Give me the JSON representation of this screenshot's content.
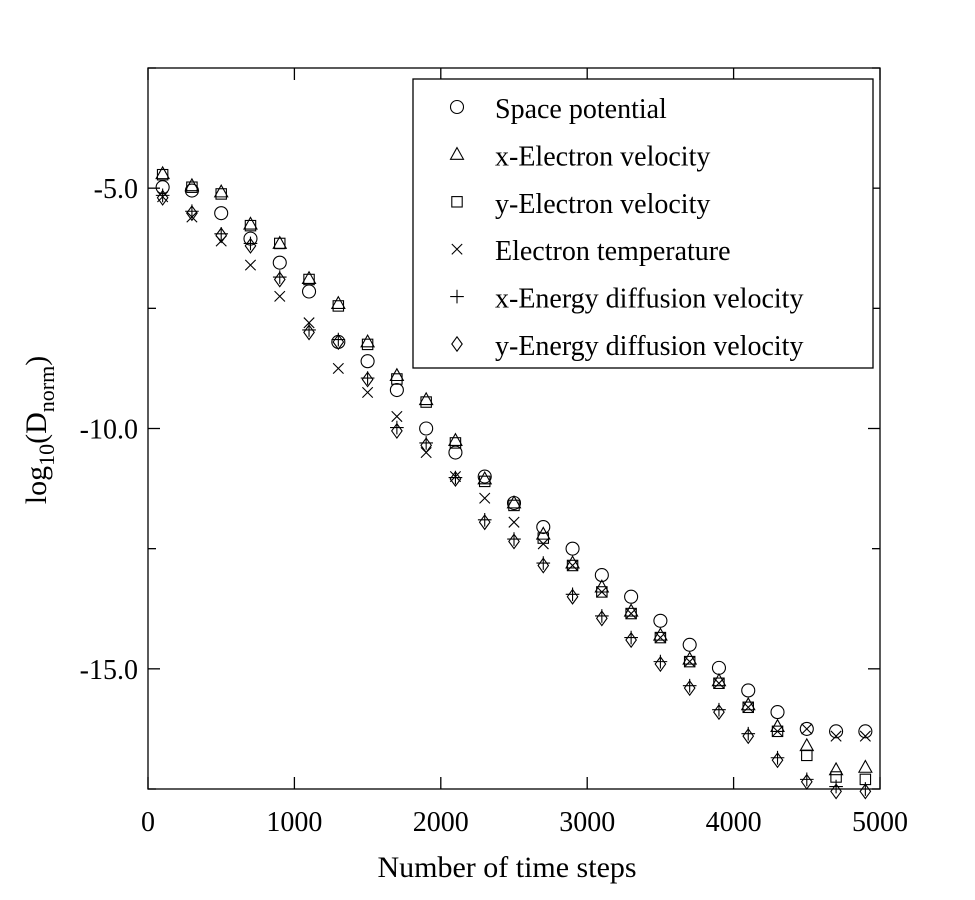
{
  "chart_data": {
    "type": "scatter",
    "title": "",
    "xlabel": "Number of time steps",
    "ylabel": {
      "prefix": "log",
      "sub": "10",
      "open": "(D",
      "sub2": "norm",
      "close": ")"
    },
    "xlim": [
      0,
      5000
    ],
    "ylim": [
      -17.5,
      -2.5
    ],
    "xticks": [
      0,
      1000,
      2000,
      3000,
      4000,
      5000
    ],
    "xtick_labels": [
      "0",
      "1000",
      "2000",
      "3000",
      "4000",
      "5000"
    ],
    "yticks": [
      -5.0,
      -10.0,
      -15.0
    ],
    "ytick_labels": [
      "-5.0",
      "-10.0",
      "-15.0"
    ],
    "minor_yticks": [
      -2.5,
      -7.5,
      -12.5,
      -17.5
    ],
    "grid": false,
    "legend_position": "top-right",
    "x": [
      100,
      300,
      500,
      700,
      900,
      1100,
      1300,
      1500,
      1700,
      1900,
      2100,
      2300,
      2500,
      2700,
      2900,
      3100,
      3300,
      3500,
      3700,
      3900,
      4100,
      4300,
      4500,
      4700,
      4900
    ],
    "series": [
      {
        "name": "Space potential",
        "marker": "circle",
        "values": [
          -4.98,
          -5.05,
          -5.52,
          -6.05,
          -6.55,
          -7.15,
          -8.2,
          -8.6,
          -9.2,
          -10.0,
          -10.5,
          -11.0,
          -11.55,
          -12.05,
          -12.5,
          -13.05,
          -13.5,
          -14.0,
          -14.5,
          -14.98,
          -15.45,
          -15.9,
          -16.25,
          -16.3,
          -16.3
        ]
      },
      {
        "name": "x-Electron velocity",
        "marker": "triangle",
        "values": [
          -4.7,
          -4.95,
          -5.08,
          -5.75,
          -6.15,
          -6.88,
          -7.4,
          -8.2,
          -8.9,
          -9.4,
          -10.25,
          -11.05,
          -11.55,
          -12.2,
          -12.8,
          -13.3,
          -13.8,
          -14.3,
          -14.8,
          -15.25,
          -15.75,
          -16.2,
          -16.6,
          -17.1,
          -17.05
        ]
      },
      {
        "name": "y-Electron velocity",
        "marker": "square",
        "values": [
          -4.72,
          -4.98,
          -5.12,
          -5.78,
          -6.15,
          -6.9,
          -7.45,
          -8.25,
          -8.97,
          -9.45,
          -10.3,
          -11.1,
          -11.6,
          -12.28,
          -12.85,
          -13.4,
          -13.85,
          -14.35,
          -14.85,
          -15.3,
          -15.8,
          -16.3,
          -16.8,
          -17.25,
          -17.3
        ]
      },
      {
        "name": "Electron temperature",
        "marker": "x",
        "values": [
          -5.18,
          -5.6,
          -6.1,
          -6.6,
          -7.25,
          -7.8,
          -8.75,
          -9.25,
          -9.75,
          -10.5,
          -11.0,
          -11.45,
          -11.95,
          -12.4,
          -12.85,
          -13.4,
          -13.85,
          -14.35,
          -14.85,
          -15.3,
          -15.8,
          -16.3,
          -16.25,
          -16.4,
          -16.4
        ]
      },
      {
        "name": "x-Energy diffusion velocity",
        "marker": "plus",
        "values": [
          -5.15,
          -5.48,
          -5.95,
          -6.15,
          -6.85,
          -7.95,
          -8.15,
          -8.95,
          -9.98,
          -10.3,
          -11.02,
          -11.9,
          -12.3,
          -12.8,
          -13.45,
          -13.9,
          -14.35,
          -14.85,
          -15.35,
          -15.85,
          -16.35,
          -16.85,
          -17.3,
          -17.45,
          -17.5
        ]
      },
      {
        "name": "y-Energy diffusion velocity",
        "marker": "diamond",
        "values": [
          -5.2,
          -5.52,
          -5.98,
          -6.2,
          -6.9,
          -8.0,
          -8.2,
          -8.98,
          -10.05,
          -10.35,
          -11.05,
          -11.95,
          -12.35,
          -12.85,
          -13.5,
          -13.95,
          -14.4,
          -14.9,
          -15.4,
          -15.9,
          -16.4,
          -16.9,
          -17.35,
          -17.55,
          -17.55
        ]
      }
    ]
  }
}
